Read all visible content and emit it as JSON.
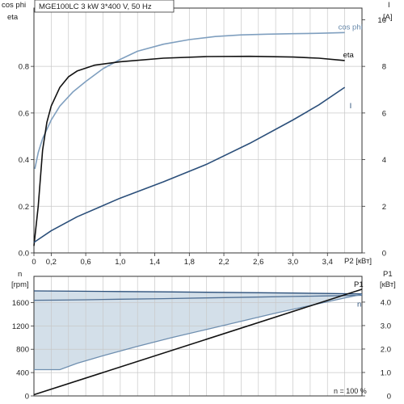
{
  "chart_data": [
    {
      "type": "line",
      "title": "MGE100LC   3 kW   3*400 V, 50 Hz",
      "left_axis_label": [
        "cos phi",
        "eta"
      ],
      "right_axis_label": [
        "I",
        "[A]"
      ],
      "xlabel": "P2 [кВт]",
      "xlim": [
        0,
        3.8
      ],
      "ylim_left": [
        0,
        1.05
      ],
      "ylim_right": [
        0,
        10.5
      ],
      "x_ticks": [
        0,
        0.2,
        0.6,
        1.0,
        1.4,
        1.8,
        2.2,
        2.6,
        3.0,
        3.4
      ],
      "x_tick_labels": [
        "0",
        "0,2",
        "0,6",
        "1,0",
        "1,4",
        "1,8",
        "2,2",
        "2,6",
        "3,0",
        "3,4"
      ],
      "y_left_ticks": [
        0,
        0.2,
        0.4,
        0.6,
        0.8
      ],
      "y_left_tick_labels": [
        "0.0",
        "0.2",
        "0.4",
        "0.6",
        "0.8"
      ],
      "y_right_ticks": [
        0,
        2,
        4,
        6,
        8,
        10
      ],
      "y_right_tick_labels": [
        "0",
        "2",
        "4",
        "6",
        "8",
        "10"
      ],
      "grid": true,
      "series": [
        {
          "name": "cos phi",
          "axis": "left",
          "color": "#7f9fbf",
          "label_color": "#6688aa",
          "x": [
            0.01,
            0.05,
            0.1,
            0.2,
            0.3,
            0.45,
            0.6,
            0.8,
            1.0,
            1.2,
            1.5,
            1.8,
            2.1,
            2.4,
            2.7,
            3.0,
            3.3,
            3.6
          ],
          "y": [
            0.36,
            0.43,
            0.49,
            0.57,
            0.63,
            0.69,
            0.735,
            0.79,
            0.83,
            0.865,
            0.895,
            0.915,
            0.928,
            0.935,
            0.938,
            0.94,
            0.942,
            0.945
          ]
        },
        {
          "name": "eta",
          "axis": "left",
          "color": "#111111",
          "label_color": "#111111",
          "x": [
            0.0,
            0.05,
            0.1,
            0.15,
            0.2,
            0.3,
            0.4,
            0.5,
            0.7,
            1.0,
            1.5,
            2.0,
            2.5,
            3.0,
            3.3,
            3.6
          ],
          "y": [
            0.03,
            0.2,
            0.44,
            0.56,
            0.63,
            0.71,
            0.755,
            0.78,
            0.805,
            0.82,
            0.835,
            0.842,
            0.843,
            0.84,
            0.835,
            0.825
          ]
        },
        {
          "name": "I",
          "axis": "right",
          "color": "#2b4f7a",
          "label_color": "#2b4f7a",
          "x": [
            0.0,
            0.2,
            0.5,
            1.0,
            1.5,
            2.0,
            2.5,
            3.0,
            3.3,
            3.6
          ],
          "y": [
            0.45,
            0.95,
            1.55,
            2.35,
            3.05,
            3.8,
            4.7,
            5.7,
            6.35,
            7.1
          ]
        }
      ]
    },
    {
      "type": "area",
      "left_axis_label": [
        "n",
        "[rpm]"
      ],
      "right_axis_label": [
        "P1",
        "[кВт]"
      ],
      "annotation": "n = 100 %",
      "xlim": [
        0,
        3.8
      ],
      "ylim_left": [
        0,
        2050
      ],
      "ylim_right": [
        0,
        5.1
      ],
      "y_left_ticks": [
        0,
        400,
        800,
        1200,
        1600
      ],
      "y_left_tick_labels": [
        "0",
        "400",
        "800",
        "1200",
        "1600"
      ],
      "y_right_ticks": [
        0,
        1,
        2,
        3,
        4
      ],
      "y_right_tick_labels": [
        "0",
        "1.0",
        "2.0",
        "3.0",
        "4.0"
      ],
      "fill_color": "#d3dfe9",
      "series": [
        {
          "name": "n",
          "axis": "left",
          "color": "#4f6f94",
          "label_color": "#2b4f7a",
          "x": [
            0.0,
            0.3,
            0.6,
            1.0,
            1.5,
            2.0,
            2.5,
            3.0,
            3.4,
            3.8
          ],
          "y": [
            1640,
            1643,
            1648,
            1658,
            1668,
            1680,
            1692,
            1705,
            1715,
            1725
          ]
        },
        {
          "name": "",
          "axis": "left",
          "color": "#2b4f7a",
          "x": [
            0.0,
            0.5,
            1.0,
            1.5,
            2.0,
            2.5,
            3.0,
            3.4,
            3.8
          ],
          "y": [
            1800,
            1795,
            1790,
            1784,
            1777,
            1770,
            1763,
            1756,
            1748
          ]
        },
        {
          "name": "",
          "axis": "left",
          "color": "#6f8fb0",
          "x": [
            0.0,
            0.15,
            0.3,
            0.5,
            0.8,
            1.2,
            1.6,
            2.0,
            2.4,
            2.8,
            3.2,
            3.6,
            3.8
          ],
          "y": [
            450,
            450,
            450,
            560,
            690,
            850,
            1000,
            1140,
            1280,
            1420,
            1550,
            1680,
            1740
          ]
        },
        {
          "name": "P1",
          "axis": "right",
          "color": "#111111",
          "label_color": "#111111",
          "x": [
            0.0,
            3.8
          ],
          "y": [
            0.05,
            4.55
          ]
        }
      ]
    }
  ]
}
